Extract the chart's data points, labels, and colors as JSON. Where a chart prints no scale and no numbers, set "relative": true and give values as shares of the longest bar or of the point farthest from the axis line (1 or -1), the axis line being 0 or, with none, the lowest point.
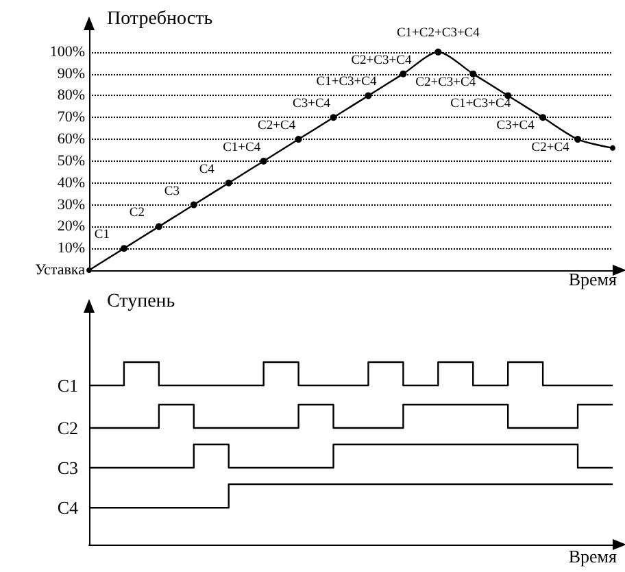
{
  "chart_data": [
    {
      "type": "line",
      "xlabel": "Время",
      "ylabel": "Потребность",
      "categories": [
        null,
        null,
        null,
        null,
        null,
        null,
        null,
        null,
        null,
        null,
        null,
        null,
        null,
        null,
        null,
        null
      ],
      "series": [
        {
          "color": "#000000",
          "values": [
            0,
            10,
            20,
            30,
            40,
            50,
            60,
            70,
            80,
            90,
            100,
            90,
            80,
            70,
            60,
            56
          ],
          "value_labels": [
            null,
            "C1",
            "C2",
            "C3",
            "C4",
            "C1+C4",
            "C2+C4",
            "C3+C4",
            "C1+C3+C4",
            "C2+C3+C4",
            "C1+C2+C3+C4",
            "C2+C3+C4",
            "C1+C3+C4",
            "C3+C4",
            "C2+C4",
            null
          ]
        }
      ],
      "ylim": [
        0,
        110
      ],
      "yticks": [
        {
          "value": 0,
          "label": "Уставка"
        },
        {
          "value": 10,
          "label": "10%"
        },
        {
          "value": 20,
          "label": "20%"
        },
        {
          "value": 30,
          "label": "30%"
        },
        {
          "value": 40,
          "label": "40%"
        },
        {
          "value": 50,
          "label": "50%"
        },
        {
          "value": 60,
          "label": "60%"
        },
        {
          "value": 70,
          "label": "70%"
        },
        {
          "value": 80,
          "label": "80%"
        },
        {
          "value": 90,
          "label": "90%"
        },
        {
          "value": 100,
          "label": "100%"
        }
      ],
      "grid": "y",
      "marker": "circle",
      "tick_labels": "y"
    },
    {
      "type": "step",
      "relative": true,
      "ylabel": "Ступень",
      "tick_labels": false,
      "categories": [
        null,
        null,
        null,
        null,
        null,
        null,
        null,
        null,
        null,
        null,
        null,
        null,
        null,
        null,
        null,
        null
      ],
      "series": [
        {
          "name": "C1",
          "color": "#000000",
          "values": [
            0,
            1,
            0,
            0,
            0,
            1,
            0,
            0,
            1,
            0,
            1,
            0,
            1,
            0,
            0,
            0
          ]
        }
      ]
    },
    {
      "type": "step",
      "relative": true,
      "tick_labels": false,
      "categories": [
        null,
        null,
        null,
        null,
        null,
        null,
        null,
        null,
        null,
        null,
        null,
        null,
        null,
        null,
        null,
        null
      ],
      "series": [
        {
          "name": "C2",
          "color": "#000000",
          "values": [
            0,
            0,
            1,
            0,
            0,
            0,
            1,
            0,
            0,
            1,
            1,
            1,
            0,
            0,
            1,
            1
          ]
        }
      ]
    },
    {
      "type": "step",
      "relative": true,
      "tick_labels": false,
      "categories": [
        null,
        null,
        null,
        null,
        null,
        null,
        null,
        null,
        null,
        null,
        null,
        null,
        null,
        null,
        null,
        null
      ],
      "series": [
        {
          "name": "C3",
          "color": "#000000",
          "values": [
            0,
            0,
            0,
            1,
            0,
            0,
            0,
            1,
            1,
            1,
            1,
            1,
            1,
            1,
            0,
            0
          ]
        }
      ]
    },
    {
      "type": "step",
      "relative": true,
      "xlabel": "Время",
      "tick_labels": false,
      "categories": [
        null,
        null,
        null,
        null,
        null,
        null,
        null,
        null,
        null,
        null,
        null,
        null,
        null,
        null,
        null,
        null
      ],
      "series": [
        {
          "name": "C4",
          "color": "#000000",
          "values": [
            0.61,
            0.61,
            0.61,
            0.61,
            1,
            1,
            1,
            1,
            1,
            1,
            1,
            1,
            1,
            1,
            1,
            1
          ]
        }
      ]
    }
  ]
}
